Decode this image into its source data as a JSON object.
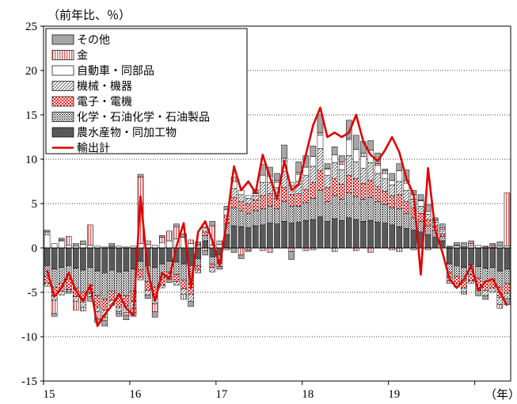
{
  "chart_data": {
    "type": "bar",
    "stacked": true,
    "ylabel": "（前年比、％）",
    "xunit": "（年）",
    "ylim": [
      -15,
      25
    ],
    "yticks": [
      25,
      20,
      15,
      10,
      5,
      0,
      -5,
      -10,
      -15
    ],
    "ytick_labels": [
      "25",
      "20",
      "15",
      "10",
      "5",
      "0",
      "-5",
      "-10",
      "-15"
    ],
    "xtick_labels": [
      "15",
      "16",
      "17",
      "18",
      "19"
    ],
    "x_start": "2015-01",
    "months": 65,
    "grid": "horizontal-dotted",
    "legend_position": "top-left",
    "series": [
      {
        "name": "その他",
        "color": "#a6a6a6",
        "pattern": "gray",
        "values": [
          0.2,
          -0.3,
          0.2,
          -0.2,
          0.3,
          0.4,
          -0.5,
          -0.4,
          -0.6,
          0.3,
          -0.3,
          -0.5,
          -0.4,
          0.3,
          -0.4,
          -0.6,
          0.2,
          -0.4,
          0.3,
          0.4,
          -0.6,
          0.3,
          -0.5,
          0.5,
          -0.3,
          0.4,
          -0.5,
          -0.4,
          -0.2,
          0.4,
          1.2,
          1.0,
          0.8,
          1.5,
          -0.9,
          1.2,
          1.3,
          1.2,
          2.0,
          0.5,
          0.9,
          0.7,
          2.0,
          1.6,
          1.3,
          1.1,
          1.2,
          0.2,
          0.8,
          0.8,
          1.2,
          0.5,
          0.6,
          0.8,
          0.2,
          0.4,
          0.1,
          0.3,
          0.5,
          0.3,
          -0.6,
          -0.4,
          0.2,
          0.5,
          -0.7
        ]
      },
      {
        "name": "金",
        "color": "#e06060",
        "pattern": "gold",
        "values": [
          0.3,
          -1.5,
          0.1,
          1.0,
          -1.0,
          -0.4,
          2.3,
          -0.8,
          -0.4,
          0.1,
          -0.2,
          -0.3,
          -0.5,
          7.5,
          0.4,
          -0.9,
          0.6,
          1.1,
          1.4,
          -0.6,
          0.4,
          0.2,
          -0.3,
          2.2,
          0.4,
          -0.2,
          0.5,
          -0.8,
          -0.2,
          0.1,
          -0.3,
          -0.5,
          0.2,
          0.3,
          -0.4,
          0.2,
          -0.3,
          -0.2,
          0.3,
          0.1,
          -0.4,
          0.3,
          0.2,
          -0.3,
          0.4,
          -0.5,
          0.2,
          0.3,
          -0.2,
          -0.4,
          0.3,
          -0.2,
          0.1,
          -0.2,
          0.1,
          0.2,
          -0.3,
          0.1,
          -0.2,
          0.3,
          -0.2,
          0.1,
          0.2,
          -0.4,
          6.0
        ]
      },
      {
        "name": "自動車・同部品",
        "color": "#ffffff",
        "pattern": "white",
        "values": [
          1.5,
          0.5,
          0.8,
          0.3,
          0.2,
          0.4,
          0.3,
          0.2,
          0.1,
          0.1,
          0.2,
          0.1,
          0.2,
          0.5,
          0.4,
          0.3,
          0.6,
          0.8,
          1.0,
          1.2,
          0.5,
          0.2,
          0.1,
          0.3,
          0.4,
          0.6,
          0.8,
          0.5,
          0.3,
          0.2,
          0.8,
          0.7,
          0.6,
          1.2,
          0.4,
          0.8,
          0.9,
          1.1,
          1.5,
          0.7,
          0.9,
          0.6,
          1.8,
          1.4,
          1.3,
          1.4,
          0.9,
          0.6,
          0.5,
          1.2,
          0.8,
          0.5,
          0.6,
          0.3,
          0.2,
          0.2,
          0.1,
          0.2,
          0.1,
          0.2,
          0.3,
          0.1,
          0.1,
          0.2,
          0.2
        ]
      },
      {
        "name": "機械・機器",
        "color": "#ffffff",
        "pattern": "hatch",
        "values": [
          -0.3,
          -0.5,
          -0.4,
          -0.2,
          -0.5,
          -0.6,
          -0.4,
          -0.5,
          -0.8,
          -0.6,
          -0.5,
          -0.7,
          -0.8,
          -0.3,
          -0.5,
          -0.7,
          -0.3,
          -0.2,
          -0.4,
          -0.6,
          -0.8,
          -0.3,
          0.5,
          -0.5,
          -0.4,
          0.2,
          1.0,
          0.8,
          0.6,
          0.5,
          1.5,
          1.3,
          1.2,
          1.8,
          1.0,
          1.4,
          1.6,
          1.8,
          2.5,
          1.4,
          1.8,
          1.6,
          2.2,
          1.9,
          1.7,
          2.0,
          1.5,
          1.4,
          1.2,
          1.5,
          1.3,
          1.0,
          0.8,
          0.6,
          0.4,
          0.3,
          -0.3,
          -0.4,
          -0.5,
          -0.3,
          -0.4,
          -0.6,
          -0.5,
          -0.8,
          -0.6
        ]
      },
      {
        "name": "電子・電機",
        "color": "#ff2020",
        "pattern": "checker",
        "values": [
          -0.8,
          -1.0,
          -0.9,
          -1.2,
          -1.0,
          -1.1,
          -0.9,
          -1.3,
          -1.2,
          -1.0,
          -1.4,
          -1.2,
          -1.1,
          -0.8,
          -1.0,
          -1.2,
          -0.9,
          -0.6,
          -0.8,
          -1.0,
          -1.2,
          -0.5,
          0.4,
          -0.4,
          -0.3,
          0.8,
          1.2,
          1.0,
          1.1,
          1.2,
          1.5,
          1.4,
          1.2,
          1.6,
          1.3,
          1.4,
          1.5,
          1.8,
          2.2,
          1.6,
          1.9,
          1.7,
          2.0,
          2.0,
          1.8,
          1.9,
          1.7,
          1.5,
          1.4,
          1.6,
          1.3,
          1.1,
          0.9,
          0.7,
          0.5,
          0.3,
          -0.6,
          -0.8,
          -0.9,
          -0.7,
          -0.8,
          -1.0,
          -0.9,
          -1.2,
          -1.1
        ]
      },
      {
        "name": "化学・石油化学・石油製品",
        "color": "#ffffff",
        "pattern": "dots",
        "values": [
          -1.2,
          -2.0,
          -1.8,
          -1.5,
          -2.2,
          -2.5,
          -2.0,
          -2.8,
          -3.0,
          -2.4,
          -2.6,
          -2.8,
          -2.5,
          -1.0,
          -1.8,
          -2.2,
          -1.5,
          -1.2,
          -1.4,
          -1.8,
          -2.0,
          -0.8,
          0.6,
          -0.8,
          -0.6,
          1.2,
          2.0,
          1.8,
          1.6,
          1.7,
          1.8,
          1.9,
          1.7,
          2.2,
          1.9,
          1.8,
          2.0,
          2.4,
          3.0,
          2.2,
          2.6,
          2.4,
          2.8,
          2.6,
          2.5,
          2.6,
          2.3,
          2.1,
          1.9,
          2.0,
          1.7,
          1.4,
          1.2,
          1.0,
          0.8,
          0.5,
          -1.0,
          -1.2,
          -1.4,
          -1.1,
          -1.3,
          -1.5,
          -1.4,
          -1.8,
          -1.6
        ]
      },
      {
        "name": "農水産物・同加工物",
        "color": "#595959",
        "pattern": "dark",
        "values": [
          -2.0,
          -2.4,
          -2.2,
          -2.0,
          -2.3,
          -2.5,
          -2.2,
          -2.6,
          -2.8,
          -2.5,
          -2.7,
          -2.6,
          -2.4,
          -1.5,
          -2.0,
          -2.2,
          -1.8,
          -1.5,
          -1.6,
          -1.8,
          -2.0,
          -1.2,
          0.8,
          -1.0,
          -0.8,
          1.5,
          2.5,
          2.4,
          2.3,
          2.5,
          2.6,
          2.8,
          2.7,
          3.0,
          2.8,
          2.9,
          3.1,
          3.2,
          3.5,
          3.0,
          3.3,
          3.1,
          3.4,
          3.2,
          3.0,
          3.1,
          2.9,
          2.8,
          2.6,
          2.4,
          2.2,
          2.0,
          1.8,
          1.5,
          1.2,
          0.8,
          -1.8,
          -2.0,
          -2.2,
          -1.9,
          -2.1,
          -2.3,
          -2.2,
          -2.6,
          -2.4
        ]
      }
    ],
    "line": {
      "name": "輸出計",
      "color": "#e00000",
      "values": [
        -2.5,
        -5.5,
        -4.5,
        -2.8,
        -4.8,
        -6.0,
        -4.2,
        -8.8,
        -7.5,
        -6.5,
        -5.2,
        -6.8,
        -7.6,
        5.8,
        -2.5,
        -6.0,
        -2.8,
        -3.5,
        0.2,
        2.8,
        -4.5,
        1.8,
        3.0,
        0.8,
        -2.0,
        3.0,
        9.2,
        6.5,
        7.5,
        6.2,
        10.5,
        8.0,
        5.5,
        9.8,
        6.5,
        7.2,
        10.5,
        13.8,
        15.8,
        12.5,
        13.0,
        12.5,
        13.0,
        15.0,
        12.0,
        10.5,
        9.8,
        11.0,
        12.5,
        10.8,
        7.8,
        6.0,
        -3.0,
        9.0,
        2.0,
        -0.5,
        -3.5,
        -4.5,
        -3.5,
        -2.0,
        -4.8,
        -3.8,
        -3.5,
        -5.0,
        -6.5
      ]
    }
  }
}
